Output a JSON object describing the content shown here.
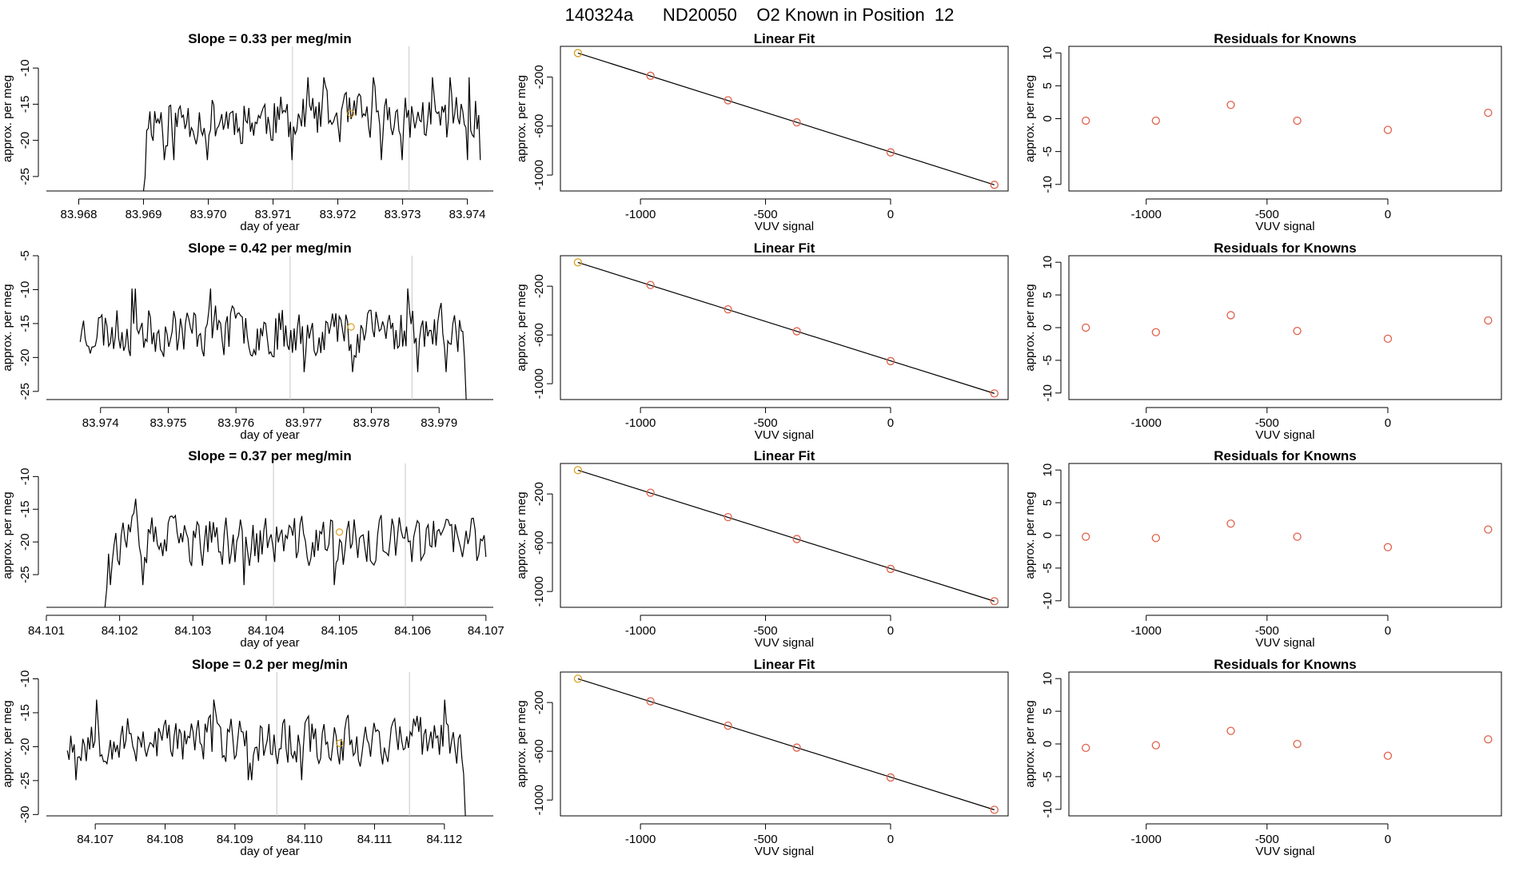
{
  "figure": {
    "title": "140324a      ND20050    O2 Known in Position  12",
    "colors": {
      "trace": "#000000",
      "vline": "#c8c8c8",
      "known_point": "#d7a020",
      "fit_point": "#e0604a",
      "residual_point": "#e0604a",
      "fit_line": "#000000"
    }
  },
  "chart_data": [
    {
      "panel": "row-1-timeseries",
      "type": "line",
      "title": "Slope =  0.33  per meg/min",
      "xlabel": "day of year",
      "ylabel": "approx. per meg",
      "xlim": [
        83.9675,
        83.9744
      ],
      "ylim": [
        -27,
        -7
      ],
      "xticks": [
        83.968,
        83.969,
        83.97,
        83.971,
        83.972,
        83.973,
        83.974
      ],
      "xtick_labels": [
        "83.968",
        "83.969",
        "83.970",
        "83.971",
        "83.972",
        "83.973",
        "83.974"
      ],
      "yticks": [
        -25,
        -20,
        -15,
        -10
      ],
      "ytick_labels": [
        "-25",
        "-20",
        "-15",
        "-10"
      ],
      "vlines": [
        83.9713,
        83.9731
      ],
      "marker": {
        "x": 83.9722,
        "y": -16.3
      },
      "trace": {
        "x_start": 83.969,
        "x_end": 83.9742,
        "points": 210,
        "mean": -17,
        "noise": 2.6,
        "lead_in": [
          -27,
          -25
        ],
        "tail": [],
        "seed": 11
      }
    },
    {
      "panel": "row-1-fit",
      "type": "scatter",
      "title": "Linear Fit",
      "xlabel": "VUV signal",
      "ylabel": "approx. per meg",
      "xlim": [
        -1320,
        470
      ],
      "ylim": [
        -1130,
        50
      ],
      "xticks": [
        -1000,
        -500,
        0
      ],
      "xtick_labels": [
        "-1000",
        "-500",
        "0"
      ],
      "yticks": [
        -1000,
        -600,
        -200
      ],
      "ytick_labels": [
        "-1000",
        "-600",
        "-200"
      ],
      "x": [
        -1250,
        -960,
        -650,
        -375,
        0,
        415
      ],
      "y": [
        -5,
        -190,
        -390,
        -570,
        -815,
        -1080
      ],
      "first_point_highlight": true,
      "fit_line": {
        "x": [
          -1250,
          415
        ],
        "y": [
          -5,
          -1080
        ]
      }
    },
    {
      "panel": "row-1-residuals",
      "type": "scatter",
      "title": "Residuals for Knowns",
      "xlabel": "VUV signal",
      "ylabel": "approx. per meg",
      "xlim": [
        -1320,
        470
      ],
      "ylim": [
        -11,
        11
      ],
      "xticks": [
        -1000,
        -500,
        0
      ],
      "xtick_labels": [
        "-1000",
        "-500",
        "0"
      ],
      "yticks": [
        -10,
        -5,
        0,
        5,
        10
      ],
      "ytick_labels": [
        "-10",
        "-5",
        "0",
        "5",
        "10"
      ],
      "x": [
        -1250,
        -960,
        -650,
        -375,
        0,
        415
      ],
      "y": [
        -0.3,
        -0.3,
        2.1,
        -0.3,
        -1.7,
        0.9
      ]
    },
    {
      "panel": "row-2-timeseries",
      "type": "line",
      "title": "Slope =  0.42  per meg/min",
      "xlabel": "day of year",
      "ylabel": "approx. per meg",
      "xlim": [
        83.9732,
        83.9798
      ],
      "ylim": [
        -26.2,
        -5
      ],
      "xticks": [
        83.974,
        83.975,
        83.976,
        83.977,
        83.978,
        83.979
      ],
      "xtick_labels": [
        "83.974",
        "83.975",
        "83.976",
        "83.977",
        "83.978",
        "83.979"
      ],
      "yticks": [
        -25,
        -20,
        -15,
        -10,
        -5
      ],
      "ytick_labels": [
        "-25",
        "-20",
        "-15",
        "-10",
        "-5"
      ],
      "vlines": [
        83.9768,
        83.9786
      ],
      "marker": {
        "x": 83.9777,
        "y": -15.5
      },
      "trace": {
        "x_start": 83.9737,
        "x_end": 83.9794,
        "points": 230,
        "mean": -16,
        "noise": 2.8,
        "lead_in": [],
        "tail": [
          -20,
          -26.2
        ],
        "seed": 23
      }
    },
    {
      "panel": "row-2-fit",
      "type": "scatter",
      "title": "Linear Fit",
      "xlabel": "VUV signal",
      "ylabel": "approx. per meg",
      "xlim": [
        -1320,
        470
      ],
      "ylim": [
        -1130,
        50
      ],
      "xticks": [
        -1000,
        -500,
        0
      ],
      "xtick_labels": [
        "-1000",
        "-500",
        "0"
      ],
      "yticks": [
        -1000,
        -600,
        -200
      ],
      "ytick_labels": [
        "-1000",
        "-600",
        "-200"
      ],
      "x": [
        -1250,
        -960,
        -650,
        -375,
        0,
        415
      ],
      "y": [
        -5,
        -190,
        -390,
        -570,
        -815,
        -1080
      ],
      "first_point_highlight": true,
      "fit_line": {
        "x": [
          -1250,
          415
        ],
        "y": [
          -5,
          -1080
        ]
      }
    },
    {
      "panel": "row-2-residuals",
      "type": "scatter",
      "title": "Residuals for Knowns",
      "xlabel": "VUV signal",
      "ylabel": "approx. per meg",
      "xlim": [
        -1320,
        470
      ],
      "ylim": [
        -11,
        11
      ],
      "xticks": [
        -1000,
        -500,
        0
      ],
      "xtick_labels": [
        "-1000",
        "-500",
        "0"
      ],
      "yticks": [
        -10,
        -5,
        0,
        5,
        10
      ],
      "ytick_labels": [
        "-10",
        "-5",
        "0",
        "5",
        "10"
      ],
      "x": [
        -1250,
        -960,
        -650,
        -375,
        0,
        415
      ],
      "y": [
        0.0,
        -0.7,
        1.9,
        -0.5,
        -1.7,
        1.1
      ]
    },
    {
      "panel": "row-3-timeseries",
      "type": "line",
      "title": "Slope =  0.37  per meg/min",
      "xlabel": "day of year",
      "ylabel": "approx. per meg",
      "xlim": [
        84.101,
        84.1071
      ],
      "ylim": [
        -30,
        -8
      ],
      "xticks": [
        84.101,
        84.102,
        84.103,
        84.104,
        84.105,
        84.106,
        84.107
      ],
      "xtick_labels": [
        "84.101",
        "84.102",
        "84.103",
        "84.104",
        "84.105",
        "84.106",
        "84.107"
      ],
      "yticks": [
        -25,
        -20,
        -15,
        -10
      ],
      "ytick_labels": [
        "-25",
        "-20",
        "-15",
        "-10"
      ],
      "vlines": [
        84.1041,
        84.1059
      ],
      "marker": {
        "x": 84.105,
        "y": -18.5
      },
      "trace": {
        "x_start": 84.1018,
        "x_end": 84.107,
        "points": 210,
        "mean": -20,
        "noise": 3.0,
        "lead_in": [
          -30,
          -27
        ],
        "tail": [],
        "seed": 37
      }
    },
    {
      "panel": "row-3-fit",
      "type": "scatter",
      "title": "Linear Fit",
      "xlabel": "VUV signal",
      "ylabel": "approx. per meg",
      "xlim": [
        -1320,
        470
      ],
      "ylim": [
        -1130,
        50
      ],
      "xticks": [
        -1000,
        -500,
        0
      ],
      "xtick_labels": [
        "-1000",
        "-500",
        "0"
      ],
      "yticks": [
        -1000,
        -600,
        -200
      ],
      "ytick_labels": [
        "-1000",
        "-600",
        "-200"
      ],
      "x": [
        -1250,
        -960,
        -650,
        -375,
        0,
        415
      ],
      "y": [
        -5,
        -190,
        -390,
        -570,
        -815,
        -1080
      ],
      "first_point_highlight": true,
      "fit_line": {
        "x": [
          -1250,
          415
        ],
        "y": [
          -5,
          -1080
        ]
      }
    },
    {
      "panel": "row-3-residuals",
      "type": "scatter",
      "title": "Residuals for Knowns",
      "xlabel": "VUV signal",
      "ylabel": "approx. per meg",
      "xlim": [
        -1320,
        470
      ],
      "ylim": [
        -11,
        11
      ],
      "xticks": [
        -1000,
        -500,
        0
      ],
      "xtick_labels": [
        "-1000",
        "-500",
        "0"
      ],
      "yticks": [
        -10,
        -5,
        0,
        5,
        10
      ],
      "ytick_labels": [
        "-10",
        "-5",
        "0",
        "5",
        "10"
      ],
      "x": [
        -1250,
        -960,
        -650,
        -375,
        0,
        415
      ],
      "y": [
        -0.2,
        -0.4,
        1.8,
        -0.2,
        -1.8,
        0.9
      ]
    },
    {
      "panel": "row-4-timeseries",
      "type": "line",
      "title": "Slope =  0.2  per meg/min",
      "xlabel": "day of year",
      "ylabel": "approx. per meg",
      "xlim": [
        84.1063,
        84.1127
      ],
      "ylim": [
        -30.2,
        -9
      ],
      "xticks": [
        84.107,
        84.108,
        84.109,
        84.11,
        84.111,
        84.112
      ],
      "xtick_labels": [
        "84.107",
        "84.108",
        "84.109",
        "84.110",
        "84.111",
        "84.112"
      ],
      "yticks": [
        -30,
        -25,
        -20,
        -15,
        -10
      ],
      "ytick_labels": [
        "-30",
        "-25",
        "-20",
        "-15",
        "-10"
      ],
      "vlines": [
        84.1096,
        84.1115
      ],
      "marker": {
        "x": 84.1105,
        "y": -19.5
      },
      "trace": {
        "x_start": 84.1066,
        "x_end": 84.1123,
        "points": 230,
        "mean": -19,
        "noise": 2.7,
        "lead_in": [],
        "tail": [
          -24,
          -30.2
        ],
        "seed": 53
      }
    },
    {
      "panel": "row-4-fit",
      "type": "scatter",
      "title": "Linear Fit",
      "xlabel": "VUV signal",
      "ylabel": "approx. per meg",
      "xlim": [
        -1320,
        470
      ],
      "ylim": [
        -1130,
        50
      ],
      "xticks": [
        -1000,
        -500,
        0
      ],
      "xtick_labels": [
        "-1000",
        "-500",
        "0"
      ],
      "yticks": [
        -1000,
        -600,
        -200
      ],
      "ytick_labels": [
        "-1000",
        "-600",
        "-200"
      ],
      "x": [
        -1250,
        -960,
        -650,
        -375,
        0,
        415
      ],
      "y": [
        -5,
        -190,
        -390,
        -570,
        -815,
        -1080
      ],
      "first_point_highlight": true,
      "fit_line": {
        "x": [
          -1250,
          415
        ],
        "y": [
          -5,
          -1080
        ]
      }
    },
    {
      "panel": "row-4-residuals",
      "type": "scatter",
      "title": "Residuals for Knowns",
      "xlabel": "VUV signal",
      "ylabel": "approx. per meg",
      "xlim": [
        -1320,
        470
      ],
      "ylim": [
        -11,
        11
      ],
      "xticks": [
        -1000,
        -500,
        0
      ],
      "xtick_labels": [
        "-1000",
        "-500",
        "0"
      ],
      "yticks": [
        -10,
        -5,
        0,
        5,
        10
      ],
      "ytick_labels": [
        "-10",
        "-5",
        "0",
        "5",
        "10"
      ],
      "x": [
        -1250,
        -960,
        -650,
        -375,
        0,
        415
      ],
      "y": [
        -0.6,
        -0.2,
        2.0,
        0.0,
        -1.8,
        0.7
      ]
    }
  ]
}
